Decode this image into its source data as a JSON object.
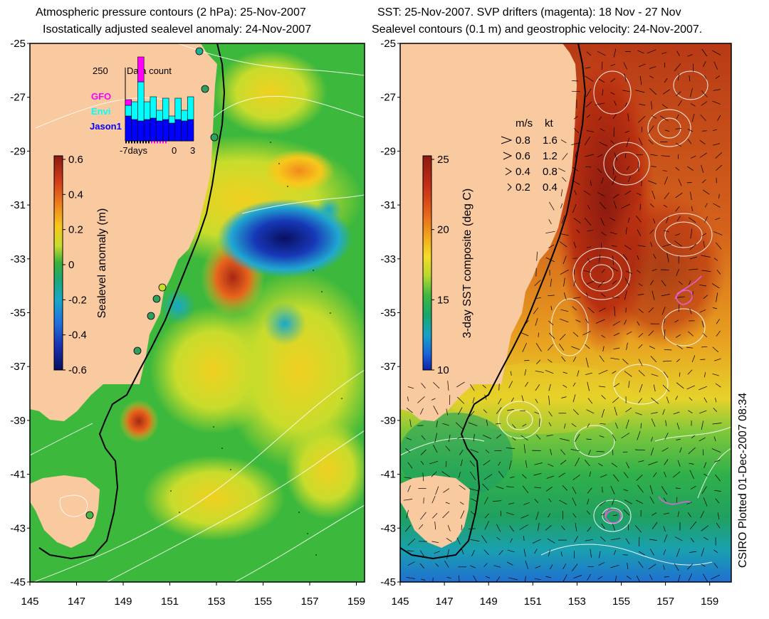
{
  "left_panel": {
    "title_line1": "Atmospheric pressure contours (2 hPa): 25-Nov-2007",
    "title_line2": "Isostatically adjusted sealevel anomaly: 24-Nov-2007",
    "colorbar": {
      "label": "Sealevel anomaly (m)",
      "ticks": [
        "0.6",
        "0.4",
        "0.2",
        "0",
        "-0.2",
        "-0.4",
        "-0.6"
      ],
      "colors": [
        "#8b1a10",
        "#d43c1a",
        "#f08a1c",
        "#f7c81c",
        "#c8dc2c",
        "#38b038",
        "#18a878",
        "#18a8c8",
        "#2070e0",
        "#1830b0",
        "#081060"
      ]
    },
    "inset": {
      "title": "Data count",
      "ymax_label": "250",
      "legend": [
        "GFO",
        "Envi",
        "Jason1"
      ],
      "legend_colors": [
        "#ff00ff",
        "#00ffff",
        "#0000ff"
      ],
      "xlabel_left": "-7days",
      "xlabel_mid": "0",
      "xlabel_right": "3",
      "bars": [
        {
          "jason": 0.35,
          "envi": 0.15,
          "gfo": 0.08
        },
        {
          "jason": 0.3,
          "envi": 0.25,
          "gfo": 0.0
        },
        {
          "jason": 0.28,
          "envi": 0.55,
          "gfo": 0.35
        },
        {
          "jason": 0.3,
          "envi": 0.25,
          "gfo": 0.0
        },
        {
          "jason": 0.32,
          "envi": 0.3,
          "gfo": 0.0
        },
        {
          "jason": 0.28,
          "envi": 0.15,
          "gfo": 0.0
        },
        {
          "jason": 0.3,
          "envi": 0.3,
          "gfo": 0.0
        },
        {
          "jason": 0.25,
          "envi": 0.1,
          "gfo": 0.0
        },
        {
          "jason": 0.3,
          "envi": 0.3,
          "gfo": 0.0
        },
        {
          "jason": 0.28,
          "envi": 0.15,
          "gfo": 0.0
        },
        {
          "jason": 0.3,
          "envi": 0.32,
          "gfo": 0.0
        }
      ]
    }
  },
  "right_panel": {
    "title_line1": "SST: 25-Nov-2007. SVP drifters (magenta): 18 Nov - 27 Nov",
    "title_line2": "Sealevel contours (0.1 m) and geostrophic velocity: 24-Nov-2007.",
    "colorbar": {
      "label": "3-day SST composite (deg C)",
      "ticks": [
        "25",
        "20",
        "15",
        "10"
      ],
      "colors": [
        "#8b1a10",
        "#c83018",
        "#e86a1c",
        "#f2a81c",
        "#f4dc28",
        "#b8d830",
        "#40b840",
        "#18a868",
        "#18a0c8",
        "#1860d8",
        "#1020a0"
      ]
    },
    "velocity_legend": {
      "header_ms": "m/s",
      "header_kt": "kt",
      "rows": [
        {
          "ms": "0.8",
          "kt": "1.6"
        },
        {
          "ms": "0.6",
          "kt": "1.2"
        },
        {
          "ms": "0.4",
          "kt": "0.8"
        },
        {
          "ms": "0.2",
          "kt": "0.4"
        }
      ]
    }
  },
  "axes": {
    "y_labels": [
      "-25",
      "-27",
      "-29",
      "-31",
      "-33",
      "-35",
      "-37",
      "-39",
      "-41",
      "-43",
      "-45"
    ],
    "x_labels": [
      "145",
      "147",
      "149",
      "151",
      "153",
      "155",
      "157",
      "159"
    ]
  },
  "footer": "CSIRO Plotted 01-Dec-2007 08:34",
  "colors": {
    "land": "#f9c9a0",
    "ocean_left": "#3cb83c",
    "ocean_right_warm": "#d05a1c",
    "ocean_right_cool": "#2caa5a",
    "drifter": "#e060e0"
  }
}
